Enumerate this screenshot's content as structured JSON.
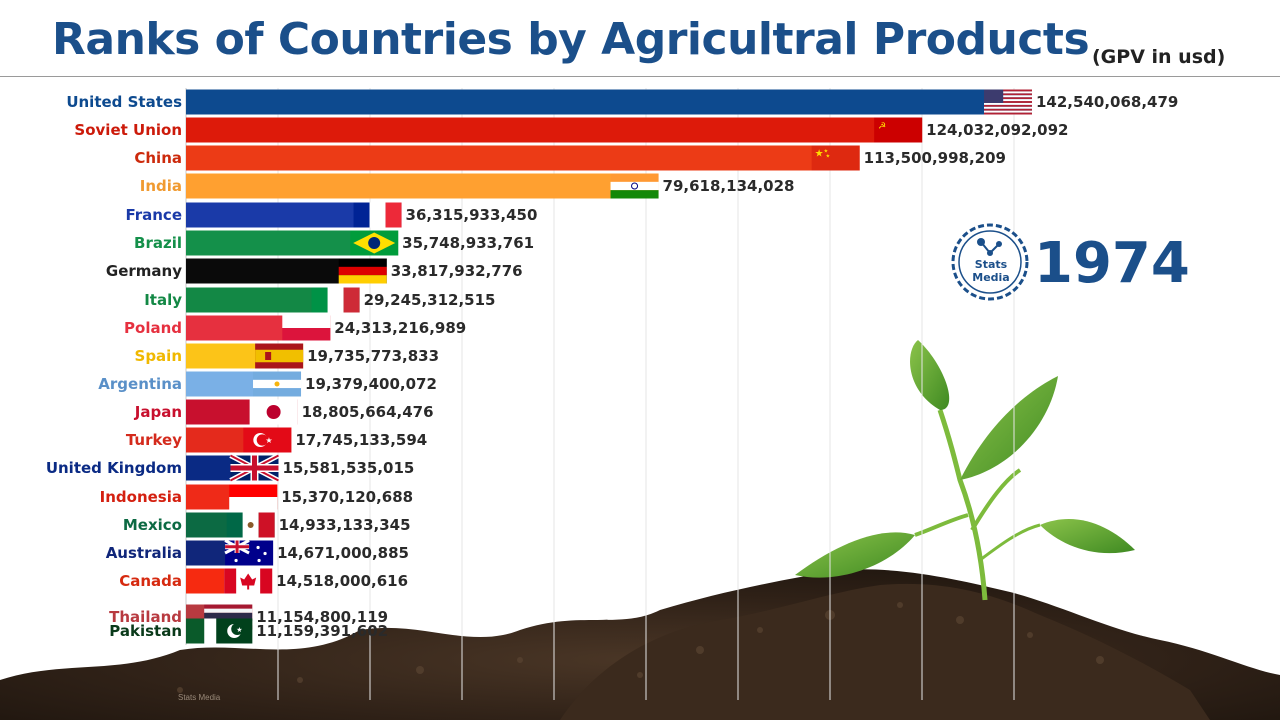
{
  "title": "Ranks of Countries by Agricultral Products",
  "subtitle": "(GPV in usd)",
  "year": "1974",
  "logo": {
    "line1": "Stats",
    "line2": "Media"
  },
  "watermark": "Stats Media",
  "colors": {
    "title": "#1b4f8a",
    "year": "#1b4f8a"
  },
  "chart_data": {
    "type": "bar",
    "orientation": "horizontal",
    "title": "Ranks of Countries by Agricultral Products",
    "subtitle": "(GPV in usd)",
    "grid": true,
    "xlim": [
      0,
      150000000000
    ],
    "categories": [
      "United States",
      "Soviet Union",
      "China",
      "India",
      "France",
      "Brazil",
      "Germany",
      "Italy",
      "Poland",
      "Spain",
      "Argentina",
      "Japan",
      "Turkey",
      "United Kingdom",
      "Indonesia",
      "Mexico",
      "Australia",
      "Canada",
      "Thailand",
      "Pakistan"
    ],
    "values": [
      142540068479,
      124032092092,
      113500998209,
      79618134028,
      36315933450,
      35748933761,
      33817932776,
      29245312515,
      24313216989,
      19735773833,
      19379400072,
      18805664476,
      17745133594,
      15581535015,
      15370120688,
      14933133345,
      14671000885,
      14518000616,
      11154800119,
      11159391602
    ],
    "value_labels": [
      "142,540,068,479",
      "124,032,092,092",
      "113,500,998,209",
      "79,618,134,028",
      "36,315,933,450",
      "35,748,933,761",
      "33,817,932,776",
      "29,245,312,515",
      "24,313,216,989",
      "19,735,773,833",
      "19,379,400,072",
      "18,805,664,476",
      "17,745,133,594",
      "15,581,535,015",
      "15,370,120,688",
      "14,933,133,345",
      "14,671,000,885",
      "14,518,000,616",
      "11,154,800,119",
      "11,159,391,602"
    ],
    "bar_colors": [
      "#0d4a8f",
      "#dd1a0a",
      "#ec3b16",
      "#ffa030",
      "#1a3aa8",
      "#14904a",
      "#0a0a0a",
      "#138845",
      "#e6303f",
      "#fcc418",
      "#7ab0e6",
      "#c8102e",
      "#e42a1c",
      "#0a2a84",
      "#ef2a18",
      "#0c6a43",
      "#10267a",
      "#f62a10",
      "#b83a40",
      "#0a5a2a"
    ],
    "label_colors": [
      "#0d4a8f",
      "#cc1a0a",
      "#cc2a0c",
      "#f09a30",
      "#1a3aa8",
      "#14904a",
      "#222222",
      "#138845",
      "#e6303f",
      "#f0b800",
      "#5a90c8",
      "#c8102e",
      "#d42a1c",
      "#0a2a84",
      "#d42010",
      "#0c6a43",
      "#10267a",
      "#d62a10",
      "#b83a40",
      "#0a3a1a"
    ],
    "flags": [
      "usa-flag",
      "ussr-flag",
      "china-flag",
      "india-flag",
      "france-flag",
      "brazil-flag",
      "germany-flag",
      "italy-flag",
      "poland-flag",
      "spain-flag",
      "argentina-flag",
      "japan-flag",
      "turkey-flag",
      "uk-flag",
      "indonesia-flag",
      "mexico-flag",
      "australia-flag",
      "canada-flag",
      "thailand-flag",
      "pakistan-flag"
    ]
  }
}
